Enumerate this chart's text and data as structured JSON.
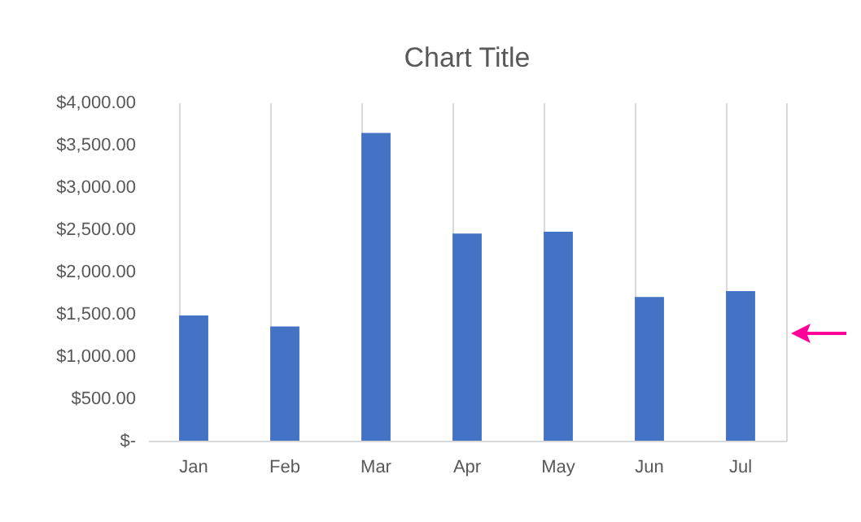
{
  "chart_data": {
    "type": "bar",
    "title": "Chart Title",
    "categories": [
      "Jan",
      "Feb",
      "Mar",
      "Apr",
      "May",
      "Jun",
      "Jul"
    ],
    "values": [
      1480,
      1350,
      3640,
      2450,
      2470,
      1700,
      1770
    ],
    "color": "#4472c4",
    "ylim": [
      0,
      4000
    ],
    "yticks": [
      {
        "value": 0,
        "label": "$-"
      },
      {
        "value": 500,
        "label": "$500.00"
      },
      {
        "value": 1000,
        "label": "$1,000.00"
      },
      {
        "value": 1500,
        "label": "$1,500.00"
      },
      {
        "value": 2000,
        "label": "$2,000.00"
      },
      {
        "value": 2500,
        "label": "$2,500.00"
      },
      {
        "value": 3000,
        "label": "$3,000.00"
      },
      {
        "value": 3500,
        "label": "$3,500.00"
      },
      {
        "value": 4000,
        "label": "$4,000.00"
      }
    ],
    "grid": "x"
  }
}
